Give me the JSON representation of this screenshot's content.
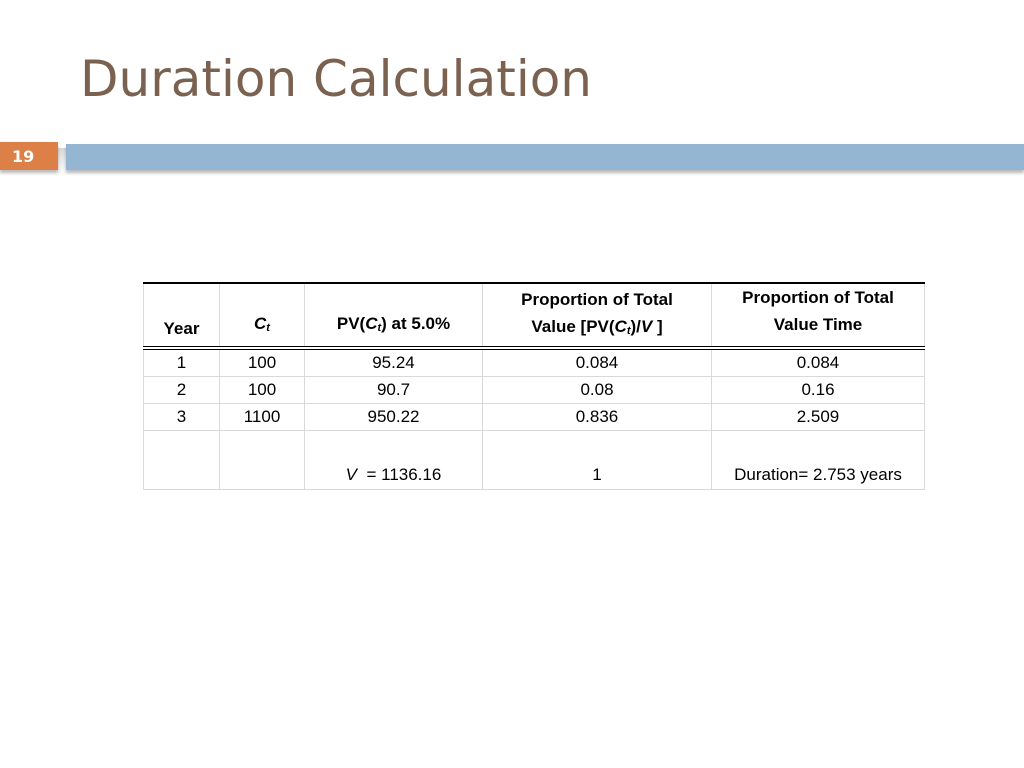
{
  "slide": {
    "title": "Duration Calculation",
    "number": "19"
  },
  "table": {
    "headers": {
      "year": "Year",
      "ct_c": "C",
      "ct_t": "t",
      "pv_prefix": "PV(",
      "pv_c": "C",
      "pv_t": "t",
      "pv_suffix": ") at 5.0%",
      "prop_line1": "Proportion of Total",
      "prop_line2_prefix": "Value [PV(",
      "prop_line2_c": "C",
      "prop_line2_t": "t",
      "prop_line2_mid": ")/",
      "prop_line2_v": "V",
      "prop_line2_suffix": " ]",
      "pvt_line1": "Proportion of Total",
      "pvt_line2": "Value Time"
    },
    "rows": [
      {
        "year": "1",
        "ct": "100",
        "pv": "95.24",
        "prop": "0.084",
        "prop_time": "0.084"
      },
      {
        "year": "2",
        "ct": "100",
        "pv": "90.7",
        "prop": "0.08",
        "prop_time": "0.16"
      },
      {
        "year": "3",
        "ct": "1100",
        "pv": "950.22",
        "prop": "0.836",
        "prop_time": "2.509"
      }
    ],
    "total": {
      "v_symbol": "V",
      "v_value": "= 1136.16",
      "prop_total": "1",
      "duration": "Duration= 2.753 years"
    }
  }
}
